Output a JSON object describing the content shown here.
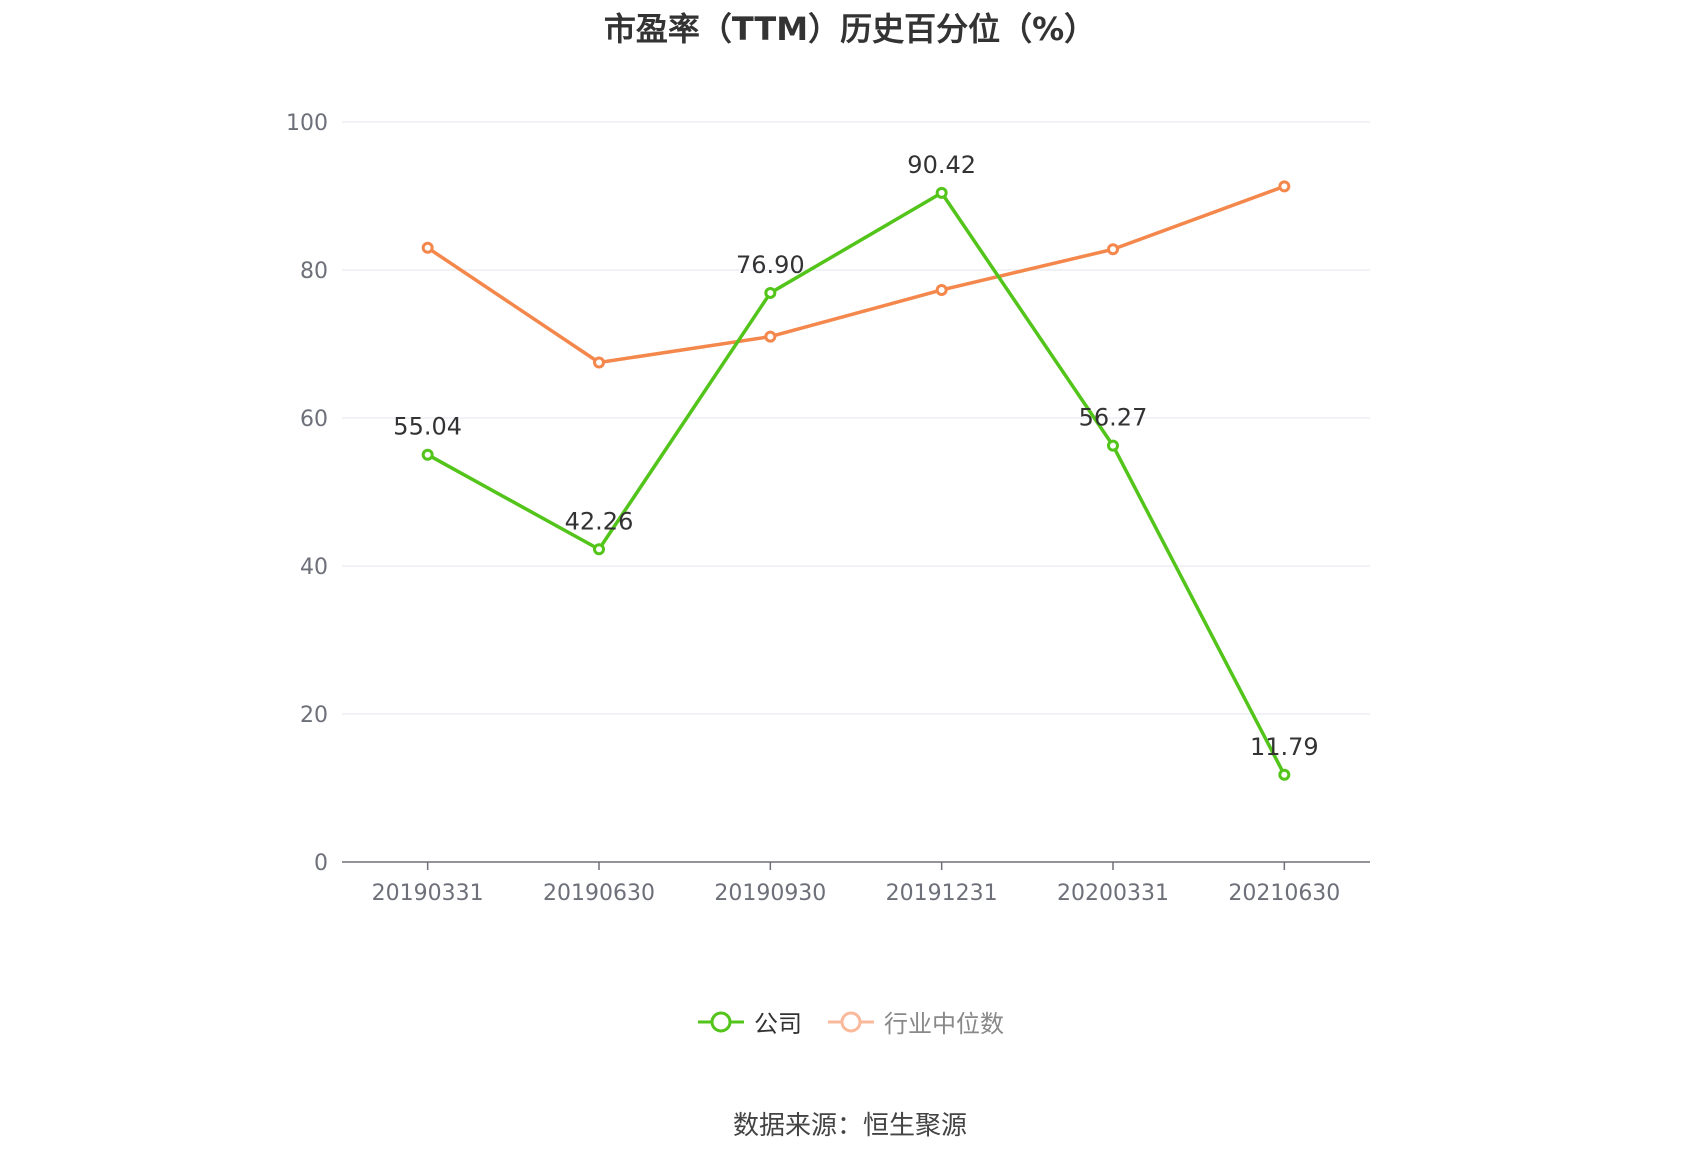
{
  "chart_data": {
    "type": "line",
    "title": "市盈率（TTM）历史百分位（%）",
    "categories": [
      "20190331",
      "20190630",
      "20190930",
      "20191231",
      "20200331",
      "20210630"
    ],
    "ylim": [
      0,
      100
    ],
    "yticks": [
      0,
      20,
      40,
      60,
      80,
      100
    ],
    "grid": true,
    "legend_position": "bottom",
    "series": [
      {
        "name": "公司",
        "color": "#52c41a",
        "values": [
          55.04,
          42.26,
          76.9,
          90.42,
          56.27,
          11.79
        ],
        "labels": [
          "55.04",
          "42.26",
          "76.90",
          "90.42",
          "56.27",
          "11.79"
        ]
      },
      {
        "name": "行业中位数",
        "color": "#f4874b",
        "legend_color": "#f9b99a",
        "values": [
          83.0,
          67.5,
          71.0,
          77.3,
          82.8,
          91.3
        ]
      }
    ],
    "source": "数据来源：恒生聚源"
  }
}
